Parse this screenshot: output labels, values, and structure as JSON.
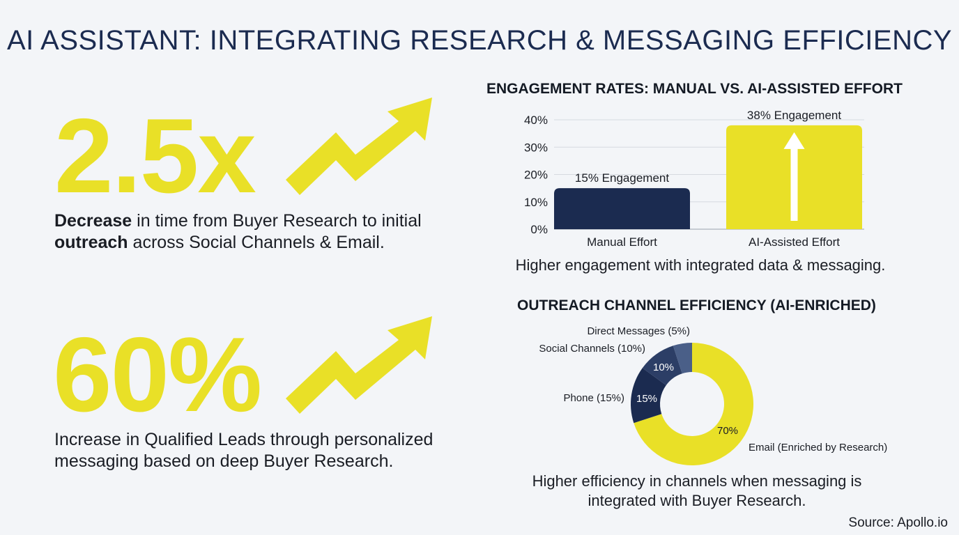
{
  "title": "AI ASSISTANT: INTEGRATING RESEARCH & MESSAGING EFFICIENCY",
  "stats": [
    {
      "value": "2.5x",
      "desc_line1_bold": "Decrease",
      "desc_line1_rest": " in time from Buyer Research to initial",
      "desc_line2_bold": "outreach",
      "desc_line2_rest": " across Social Channels & Email."
    },
    {
      "value": "60%",
      "desc_line1": "Increase in Qualified Leads through personalized",
      "desc_line2": "messaging based on deep Buyer Research."
    }
  ],
  "colors": {
    "navy": "#1b2b50",
    "yellow": "#e9e027",
    "slate": "#3f557f"
  },
  "chart_data": [
    {
      "type": "bar",
      "title": "ENGAGEMENT RATES: MANUAL VS. AI-ASSISTED EFFORT",
      "categories": [
        "Manual Effort",
        "AI-Assisted Effort"
      ],
      "values": [
        15,
        38
      ],
      "data_labels": [
        "15% Engagement",
        "38% Engagement"
      ],
      "yticks": [
        "0%",
        "10%",
        "20%",
        "30%",
        "40%"
      ],
      "ylim": [
        0,
        40
      ],
      "grid": true,
      "caption": "Higher engagement with integrated data & messaging."
    },
    {
      "type": "pie",
      "title": "OUTREACH CHANNEL EFFICIENCY (AI-ENRICHED)",
      "slices": [
        {
          "label": "Email (Enriched by Research)",
          "value": 70,
          "value_label": "70%",
          "color": "#e9e027"
        },
        {
          "label": "Phone (15%)",
          "value": 15,
          "value_label": "15%",
          "color": "#1b2b50"
        },
        {
          "label": "Social Channels (10%)",
          "value": 10,
          "value_label": "10%",
          "color": "#2c3e66"
        },
        {
          "label": "Direct Messages (5%)",
          "value": 5,
          "value_label": "",
          "color": "#4a5f88"
        }
      ],
      "caption_line1": "Higher efficiency in channels when messaging is",
      "caption_line2": "integrated with Buyer Research."
    }
  ],
  "source": "Source: Apollo.io"
}
